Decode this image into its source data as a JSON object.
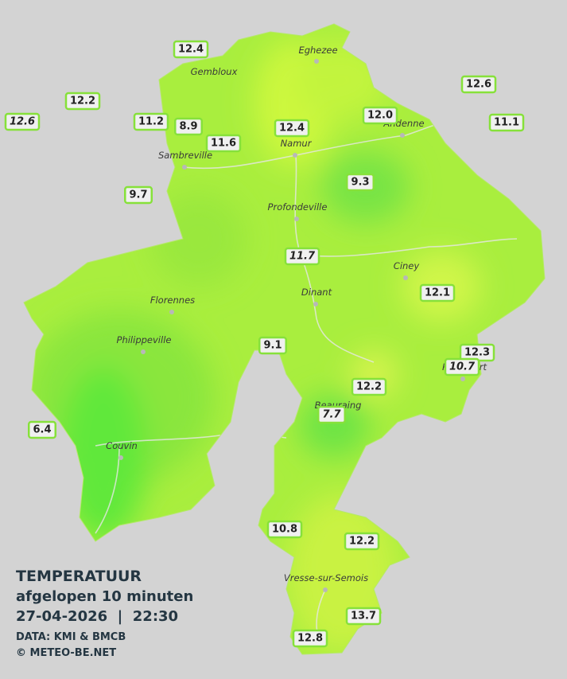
{
  "title": "TEMPERATUUR",
  "subtitle": "afgelopen 10 minuten",
  "datetime": "27-04-2026  |  22:30",
  "source": "DATA: KMI & BMCB",
  "copyright": "© METEO-BE.NET",
  "places": [
    "Eghezee",
    "Gembloux",
    "Andenne",
    "Namur",
    "Sambreville",
    "Profondeville",
    "Ciney",
    "Dinant",
    "Florennes",
    "Philippeville",
    "Rochefort",
    "Beauraing",
    "Couvin",
    "Vresse-sur-Semois"
  ],
  "stations": [
    {
      "value": "12.4",
      "italic": false
    },
    {
      "value": "12.2",
      "italic": false
    },
    {
      "value": "12.6",
      "italic": true
    },
    {
      "value": "11.2",
      "italic": false
    },
    {
      "value": "8.9",
      "italic": false
    },
    {
      "value": "11.6",
      "italic": false
    },
    {
      "value": "12.4",
      "italic": false
    },
    {
      "value": "12.0",
      "italic": false
    },
    {
      "value": "12.6",
      "italic": false
    },
    {
      "value": "11.1",
      "italic": false
    },
    {
      "value": "9.7",
      "italic": false
    },
    {
      "value": "9.3",
      "italic": false
    },
    {
      "value": "11.7",
      "italic": true
    },
    {
      "value": "12.1",
      "italic": false
    },
    {
      "value": "9.1",
      "italic": false
    },
    {
      "value": "12.3",
      "italic": false
    },
    {
      "value": "10.7",
      "italic": true
    },
    {
      "value": "12.2",
      "italic": false
    },
    {
      "value": "7.7",
      "italic": true
    },
    {
      "value": "6.4",
      "italic": false
    },
    {
      "value": "10.8",
      "italic": false
    },
    {
      "value": "12.2",
      "italic": false
    },
    {
      "value": "13.7",
      "italic": false
    },
    {
      "value": "12.8",
      "italic": false
    }
  ]
}
